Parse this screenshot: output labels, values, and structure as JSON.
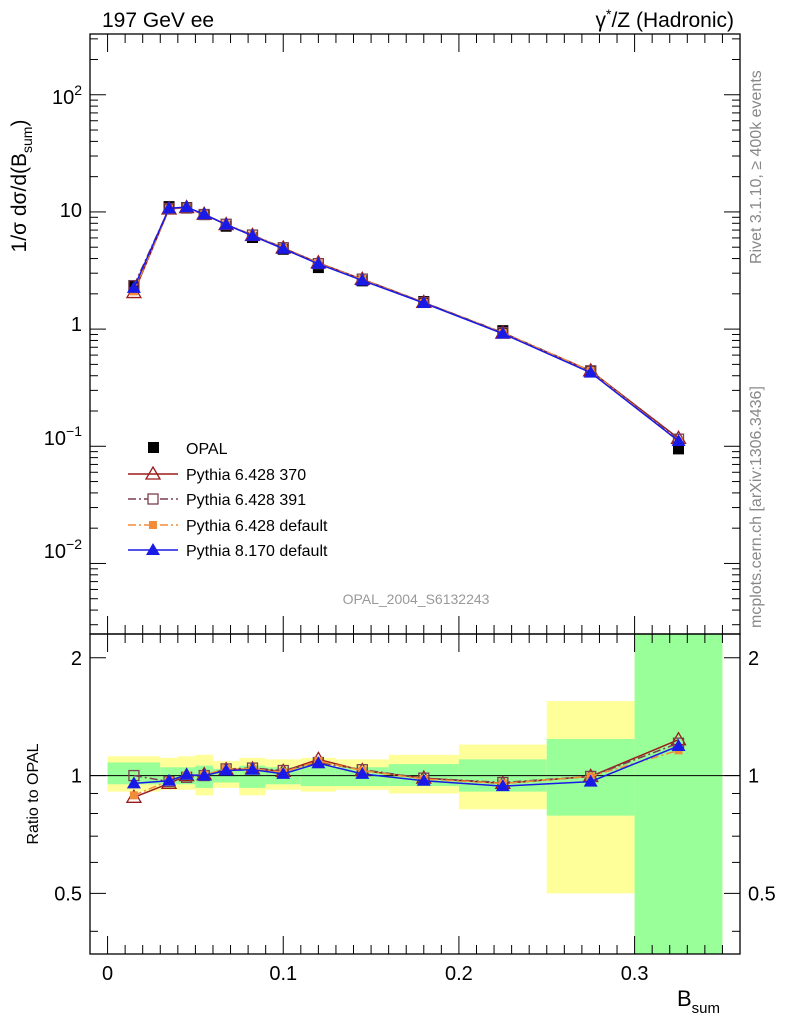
{
  "header": {
    "left": "197 GeV ee",
    "right_prefix": "γ",
    "right_sup": "*",
    "right_suffix": "/Z (Hadronic)"
  },
  "side_labels": {
    "rivet": "Rivet 3.1.10, ≥ 400k events",
    "mcplots": "mcplots.cern.ch [arXiv:1306.3436]"
  },
  "analysis_id": "OPAL_2004_S6132243",
  "main_plot": {
    "ylabel_pre": "1/σ dσ/d(B",
    "ylabel_sub": "sum",
    "ylabel_post": ")",
    "ytick_labels": {
      "e-2_base": "10",
      "e-2_exp": "−2",
      "e-1_base": "10",
      "e-1_exp": "−1",
      "e0": "1",
      "e1": "10",
      "e2_base": "10",
      "e2_exp": "2"
    }
  },
  "ratio_plot": {
    "ylabel": "Ratio to OPAL",
    "ytick_labels": [
      "0.5",
      "1",
      "2"
    ]
  },
  "x_axis": {
    "label_base": "B",
    "label_sub": "sum",
    "tick_labels": [
      "0",
      "0.1",
      "0.2",
      "0.3"
    ]
  },
  "legend": [
    {
      "label": "OPAL"
    },
    {
      "label": "Pythia 6.428 370"
    },
    {
      "label": "Pythia 6.428 391"
    },
    {
      "label": "Pythia 6.428 default"
    },
    {
      "label": "Pythia 8.170 default"
    }
  ],
  "chart_data": {
    "type": "line",
    "x_range": [
      -0.01,
      0.36
    ],
    "y_range_main": [
      0.0025,
      330
    ],
    "y_scale_main": "log",
    "y_range_ratio": [
      0.35,
      2.3
    ],
    "y_scale_ratio": "log",
    "bins": [
      [
        0.0,
        0.03
      ],
      [
        0.03,
        0.04
      ],
      [
        0.04,
        0.05
      ],
      [
        0.05,
        0.06
      ],
      [
        0.06,
        0.075
      ],
      [
        0.075,
        0.09
      ],
      [
        0.09,
        0.11
      ],
      [
        0.11,
        0.13
      ],
      [
        0.13,
        0.16
      ],
      [
        0.16,
        0.2
      ],
      [
        0.2,
        0.25
      ],
      [
        0.25,
        0.3
      ],
      [
        0.3,
        0.35
      ]
    ],
    "x": [
      0.015,
      0.035,
      0.045,
      0.055,
      0.0675,
      0.0825,
      0.1,
      0.12,
      0.145,
      0.18,
      0.225,
      0.275,
      0.325
    ],
    "data": {
      "name": "OPAL",
      "values": [
        2.35,
        11.1,
        10.9,
        9.5,
        7.55,
        6.05,
        4.8,
        3.35,
        2.58,
        1.72,
        0.97,
        0.44,
        0.095
      ],
      "band_inner": [
        [
          0.95,
          1.08
        ],
        [
          0.95,
          1.05
        ],
        [
          0.95,
          1.05
        ],
        [
          0.93,
          1.06
        ],
        [
          0.96,
          1.04
        ],
        [
          0.93,
          1.06
        ],
        [
          0.95,
          1.05
        ],
        [
          0.94,
          1.06
        ],
        [
          0.94,
          1.05
        ],
        [
          0.94,
          1.07
        ],
        [
          0.91,
          1.1
        ],
        [
          0.79,
          1.24
        ],
        [
          0.35,
          2.3
        ]
      ],
      "band_outer": [
        [
          0.91,
          1.12
        ],
        [
          0.92,
          1.11
        ],
        [
          0.92,
          1.12
        ],
        [
          0.89,
          1.13
        ],
        [
          0.93,
          1.09
        ],
        [
          0.89,
          1.11
        ],
        [
          0.92,
          1.1
        ],
        [
          0.91,
          1.11
        ],
        [
          0.92,
          1.1
        ],
        [
          0.9,
          1.13
        ],
        [
          0.82,
          1.2
        ],
        [
          0.5,
          1.55
        ],
        [
          0.35,
          2.3
        ]
      ]
    },
    "series": [
      {
        "name": "Pythia 6.428 370",
        "color": "#9b1b1b",
        "marker": "triangle-open",
        "dash": "solid",
        "values": [
          2.05,
          10.6,
          10.9,
          9.55,
          7.8,
          6.3,
          4.92,
          3.68,
          2.66,
          1.69,
          0.925,
          0.44,
          0.117
        ],
        "ratio": [
          0.88,
          0.955,
          1.0,
          1.005,
          1.035,
          1.04,
          1.025,
          1.1,
          1.03,
          0.985,
          0.955,
          0.995,
          1.235
        ]
      },
      {
        "name": "Pythia 6.428 391",
        "color": "#7b3f4f",
        "marker": "square-open",
        "dash": "dashdot",
        "values": [
          2.35,
          10.7,
          10.8,
          9.5,
          7.85,
          6.35,
          4.95,
          3.62,
          2.67,
          1.69,
          0.935,
          0.44,
          0.115
        ],
        "ratio": [
          1.0,
          0.965,
          0.99,
          1.0,
          1.04,
          1.045,
          1.03,
          1.08,
          1.035,
          0.985,
          0.96,
          0.995,
          1.21
        ]
      },
      {
        "name": "Pythia 6.428 default",
        "color": "#f28c38",
        "marker": "square-filled",
        "dash": "dashdot",
        "values": [
          2.1,
          10.7,
          10.9,
          9.55,
          7.85,
          6.3,
          4.9,
          3.65,
          2.65,
          1.68,
          0.93,
          0.44,
          0.11
        ],
        "ratio": [
          0.89,
          0.97,
          1.0,
          1.005,
          1.04,
          1.04,
          1.02,
          1.09,
          1.03,
          0.98,
          0.955,
          0.995,
          1.16
        ]
      },
      {
        "name": "Pythia 8.170 default",
        "color": "#1a1ae6",
        "marker": "triangle-filled",
        "dash": "solid",
        "values": [
          2.25,
          10.75,
          11.0,
          9.55,
          7.8,
          6.25,
          4.85,
          3.6,
          2.6,
          1.67,
          0.915,
          0.425,
          0.111
        ],
        "ratio": [
          0.955,
          0.97,
          1.005,
          1.0,
          1.03,
          1.035,
          1.01,
          1.075,
          1.01,
          0.97,
          0.94,
          0.965,
          1.19
        ]
      }
    ]
  }
}
